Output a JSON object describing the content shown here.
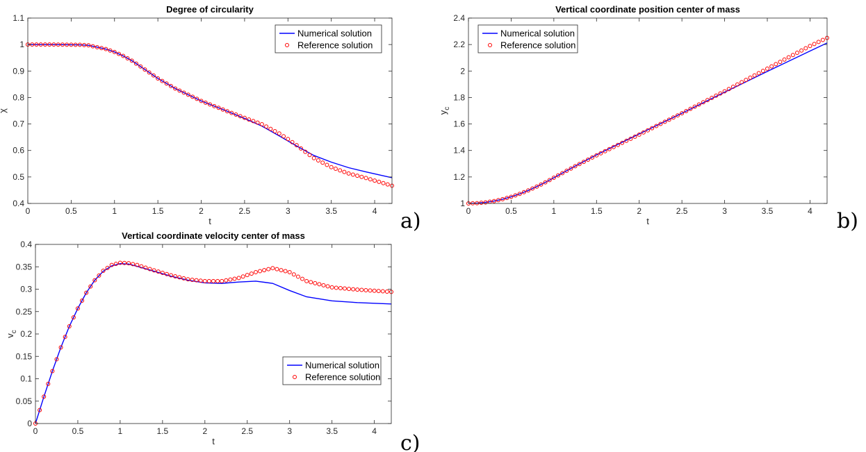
{
  "colors": {
    "numerical": "#0000ff",
    "reference": "#ff0000",
    "axis": "#262626",
    "background": "#ffffff"
  },
  "chart_data": [
    {
      "type": "line",
      "panel_letter": "a)",
      "title": "Degree of circularity",
      "xlabel": "t",
      "ylabel": "χ",
      "ylabel_sub": "",
      "xlim": [
        0,
        4.2
      ],
      "ylim": [
        0.4,
        1.1
      ],
      "xticks": [
        0,
        0.5,
        1,
        1.5,
        2,
        2.5,
        3,
        3.5,
        4
      ],
      "yticks": [
        0.4,
        0.5,
        0.6,
        0.7,
        0.8,
        0.9,
        1,
        1.1
      ],
      "grid": false,
      "legend_position": "top-right",
      "series": [
        {
          "name": "Numerical solution",
          "style": "line",
          "x": [
            0,
            0.3,
            0.6,
            0.7,
            0.8,
            0.9,
            1.0,
            1.1,
            1.2,
            1.3,
            1.5,
            1.7,
            2.0,
            2.3,
            2.5,
            2.7,
            2.9,
            3.1,
            3.3,
            3.5,
            3.7,
            3.9,
            4.2
          ],
          "y": [
            1.0,
            1.0,
            0.999,
            0.997,
            0.99,
            0.983,
            0.972,
            0.957,
            0.939,
            0.917,
            0.872,
            0.834,
            0.787,
            0.748,
            0.721,
            0.692,
            0.655,
            0.617,
            0.581,
            0.556,
            0.535,
            0.519,
            0.497
          ]
        },
        {
          "name": "Reference solution",
          "style": "markers",
          "x": [
            0,
            0.3,
            0.6,
            0.7,
            0.8,
            0.9,
            1.0,
            1.1,
            1.2,
            1.3,
            1.5,
            1.7,
            2.0,
            2.3,
            2.5,
            2.7,
            2.9,
            3.0,
            3.1,
            3.2,
            3.3,
            3.5,
            3.7,
            3.9,
            4.2
          ],
          "y": [
            1.0,
            1.0,
            0.999,
            0.997,
            0.99,
            0.983,
            0.972,
            0.957,
            0.939,
            0.917,
            0.872,
            0.834,
            0.787,
            0.748,
            0.723,
            0.699,
            0.664,
            0.643,
            0.62,
            0.595,
            0.571,
            0.537,
            0.513,
            0.496,
            0.467
          ]
        }
      ]
    },
    {
      "type": "line",
      "panel_letter": "b)",
      "title": "Vertical coordinate position center of mass",
      "xlabel": "t",
      "ylabel": "y",
      "ylabel_sub": "c",
      "xlim": [
        0,
        4.2
      ],
      "ylim": [
        1,
        2.4
      ],
      "xticks": [
        0,
        0.5,
        1,
        1.5,
        2,
        2.5,
        3,
        3.5,
        4
      ],
      "yticks": [
        1,
        1.2,
        1.4,
        1.6,
        1.8,
        2,
        2.2,
        2.4
      ],
      "grid": false,
      "legend_position": "top-left",
      "series": [
        {
          "name": "Numerical solution",
          "style": "line",
          "x": [
            0,
            0.1,
            0.2,
            0.3,
            0.4,
            0.5,
            0.6,
            0.7,
            0.8,
            0.9,
            1.0,
            1.25,
            1.5,
            2.0,
            2.5,
            3.0,
            3.5,
            4.0,
            4.2
          ],
          "y": [
            1.0,
            1.002,
            1.008,
            1.018,
            1.032,
            1.05,
            1.072,
            1.098,
            1.127,
            1.159,
            1.194,
            1.282,
            1.367,
            1.525,
            1.681,
            1.84,
            1.997,
            2.151,
            2.212
          ]
        },
        {
          "name": "Reference solution",
          "style": "markers",
          "x": [
            0,
            0.1,
            0.2,
            0.3,
            0.4,
            0.5,
            0.6,
            0.7,
            0.8,
            0.9,
            1.0,
            1.25,
            1.5,
            2.0,
            2.5,
            3.0,
            3.5,
            4.0,
            4.2
          ],
          "y": [
            1.0,
            1.002,
            1.008,
            1.018,
            1.032,
            1.05,
            1.072,
            1.098,
            1.127,
            1.159,
            1.194,
            1.281,
            1.363,
            1.52,
            1.681,
            1.847,
            2.018,
            2.189,
            2.25
          ]
        }
      ]
    },
    {
      "type": "line",
      "panel_letter": "c)",
      "title": "Vertical coordinate velocity center of mass",
      "xlabel": "t",
      "ylabel": "v",
      "ylabel_sub": "c",
      "xlim": [
        0,
        4.2
      ],
      "ylim": [
        0,
        0.4
      ],
      "xticks": [
        0,
        0.5,
        1,
        1.5,
        2,
        2.5,
        3,
        3.5,
        4
      ],
      "yticks": [
        0,
        0.05,
        0.1,
        0.15,
        0.2,
        0.25,
        0.3,
        0.35,
        0.4
      ],
      "grid": false,
      "legend_position": "bottom-right",
      "series": [
        {
          "name": "Numerical solution",
          "style": "line",
          "x": [
            0,
            0.1,
            0.2,
            0.3,
            0.4,
            0.5,
            0.6,
            0.7,
            0.8,
            0.9,
            1.0,
            1.1,
            1.2,
            1.4,
            1.6,
            1.8,
            2.0,
            2.2,
            2.4,
            2.6,
            2.8,
            3.0,
            3.2,
            3.5,
            3.8,
            4.2
          ],
          "y": [
            0,
            0.06,
            0.117,
            0.17,
            0.217,
            0.257,
            0.292,
            0.32,
            0.34,
            0.352,
            0.357,
            0.356,
            0.351,
            0.34,
            0.329,
            0.32,
            0.314,
            0.313,
            0.316,
            0.318,
            0.313,
            0.297,
            0.283,
            0.274,
            0.27,
            0.267
          ]
        },
        {
          "name": "Reference solution",
          "style": "markers",
          "x": [
            0,
            0.1,
            0.2,
            0.3,
            0.4,
            0.5,
            0.6,
            0.7,
            0.8,
            0.9,
            1.0,
            1.1,
            1.2,
            1.4,
            1.6,
            1.8,
            2.0,
            2.2,
            2.4,
            2.6,
            2.8,
            3.0,
            3.2,
            3.5,
            3.8,
            4.2
          ],
          "y": [
            0,
            0.06,
            0.117,
            0.17,
            0.217,
            0.257,
            0.292,
            0.32,
            0.341,
            0.354,
            0.359,
            0.358,
            0.354,
            0.342,
            0.331,
            0.322,
            0.318,
            0.318,
            0.325,
            0.338,
            0.347,
            0.338,
            0.318,
            0.304,
            0.299,
            0.294
          ]
        }
      ]
    }
  ]
}
